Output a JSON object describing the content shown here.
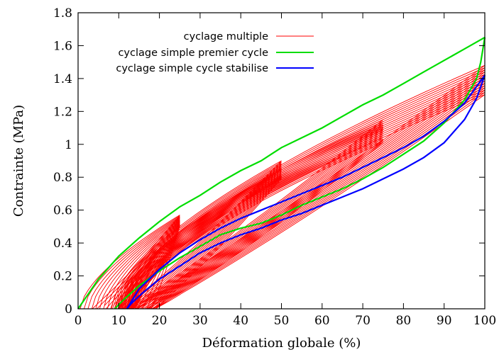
{
  "chart_data": {
    "type": "line",
    "xlabel": "Déformation globale (%)",
    "ylabel": "Contrainte (MPa)",
    "xlim": [
      0,
      100
    ],
    "ylim": [
      0,
      1.8
    ],
    "xticks": [
      0,
      10,
      20,
      30,
      40,
      50,
      60,
      70,
      80,
      90,
      100
    ],
    "yticks": [
      0,
      0.2,
      0.4,
      0.6,
      0.8,
      1,
      1.2,
      1.4,
      1.6,
      1.8
    ],
    "ytick_labels": [
      "0",
      "0.2",
      "0.4",
      "0.6",
      "0.8",
      "1",
      "1.2",
      "1.4",
      "1.6",
      "1.8"
    ],
    "grid": false,
    "legend_position": "top-right",
    "series": [
      {
        "name": "cyclage multiple",
        "color": "#ff0000",
        "style": "dense family of thin loading/unloading cycles up to 25, 50, 75 and 100 % strain",
        "envelope_upper": [
          [
            0,
            0.0
          ],
          [
            25,
            0.57
          ],
          [
            50,
            0.9
          ],
          [
            75,
            1.15
          ],
          [
            100,
            1.48
          ]
        ],
        "envelope_lower": [
          [
            3,
            0.0
          ],
          [
            10,
            0.0
          ],
          [
            13,
            0.0
          ],
          [
            50,
            0.5
          ],
          [
            75,
            0.76
          ],
          [
            100,
            1.25
          ]
        ]
      },
      {
        "name": "cyclage simple premier cycle",
        "color": "#00dd00",
        "loading": [
          [
            0,
            0.0
          ],
          [
            5,
            0.18
          ],
          [
            10,
            0.32
          ],
          [
            15,
            0.43
          ],
          [
            20,
            0.53
          ],
          [
            25,
            0.62
          ],
          [
            30,
            0.69
          ],
          [
            35,
            0.77
          ],
          [
            40,
            0.84
          ],
          [
            45,
            0.9
          ],
          [
            50,
            0.98
          ],
          [
            55,
            1.04
          ],
          [
            60,
            1.1
          ],
          [
            65,
            1.17
          ],
          [
            70,
            1.24
          ],
          [
            75,
            1.3
          ],
          [
            80,
            1.37
          ],
          [
            85,
            1.44
          ],
          [
            90,
            1.51
          ],
          [
            95,
            1.58
          ],
          [
            100,
            1.65
          ]
        ],
        "unloading": [
          [
            100,
            1.65
          ],
          [
            99,
            1.5
          ],
          [
            98,
            1.4
          ],
          [
            95,
            1.27
          ],
          [
            90,
            1.13
          ],
          [
            85,
            1.02
          ],
          [
            80,
            0.94
          ],
          [
            75,
            0.86
          ],
          [
            70,
            0.79
          ],
          [
            65,
            0.73
          ],
          [
            60,
            0.68
          ],
          [
            55,
            0.63
          ],
          [
            50,
            0.57
          ],
          [
            45,
            0.52
          ],
          [
            40,
            0.49
          ],
          [
            35,
            0.45
          ],
          [
            30,
            0.38
          ],
          [
            25,
            0.31
          ],
          [
            20,
            0.23
          ],
          [
            15,
            0.14
          ],
          [
            11,
            0.05
          ],
          [
            9,
            0.0
          ]
        ]
      },
      {
        "name": "cyclage simple cycle stabilise",
        "color": "#0000ff",
        "loading": [
          [
            12,
            0.0
          ],
          [
            15,
            0.12
          ],
          [
            20,
            0.24
          ],
          [
            25,
            0.34
          ],
          [
            30,
            0.42
          ],
          [
            35,
            0.49
          ],
          [
            40,
            0.55
          ],
          [
            45,
            0.6
          ],
          [
            50,
            0.65
          ],
          [
            55,
            0.7
          ],
          [
            60,
            0.75
          ],
          [
            65,
            0.8
          ],
          [
            70,
            0.86
          ],
          [
            75,
            0.92
          ],
          [
            80,
            0.98
          ],
          [
            85,
            1.05
          ],
          [
            90,
            1.14
          ],
          [
            95,
            1.25
          ],
          [
            100,
            1.42
          ]
        ],
        "unloading": [
          [
            100,
            1.42
          ],
          [
            98,
            1.28
          ],
          [
            95,
            1.15
          ],
          [
            90,
            1.01
          ],
          [
            85,
            0.92
          ],
          [
            80,
            0.85
          ],
          [
            75,
            0.79
          ],
          [
            70,
            0.73
          ],
          [
            65,
            0.68
          ],
          [
            60,
            0.63
          ],
          [
            55,
            0.58
          ],
          [
            50,
            0.54
          ],
          [
            45,
            0.49
          ],
          [
            40,
            0.45
          ],
          [
            35,
            0.4
          ],
          [
            30,
            0.34
          ],
          [
            25,
            0.26
          ],
          [
            20,
            0.18
          ],
          [
            16,
            0.1
          ],
          [
            13,
            0.03
          ],
          [
            12,
            0.0
          ]
        ]
      }
    ]
  }
}
